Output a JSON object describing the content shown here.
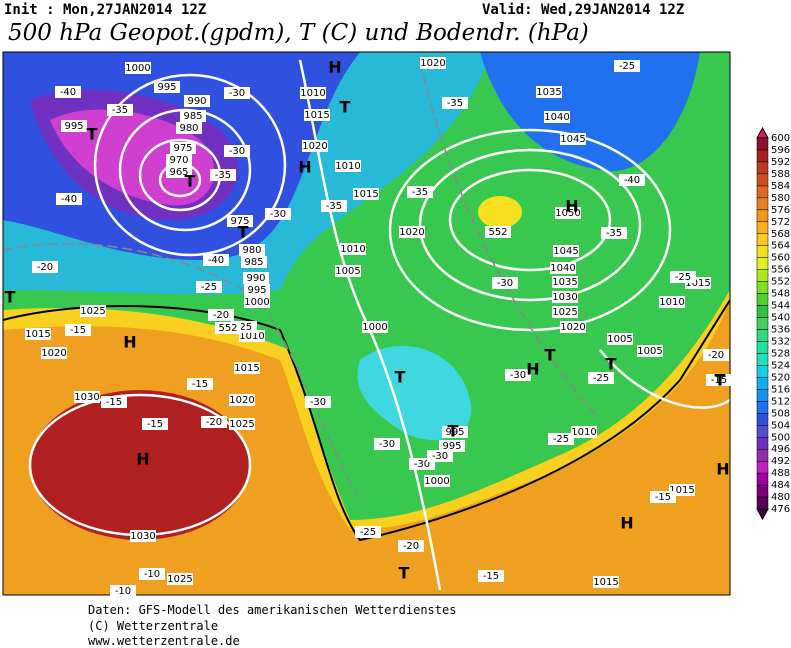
{
  "header": {
    "init": "Init : Mon,27JAN2014 12Z",
    "valid": "Valid: Wed,29JAN2014 12Z",
    "title": "500 hPa Geopot.(gpdm), T (C) und Bodendr. (hPa)"
  },
  "colorbar": {
    "labels": [
      600,
      596,
      592,
      588,
      584,
      580,
      576,
      572,
      568,
      564,
      560,
      556,
      552,
      548,
      544,
      540,
      536,
      532,
      528,
      524,
      520,
      516,
      512,
      508,
      504,
      500,
      496,
      492,
      488,
      484,
      480,
      476
    ]
  },
  "map_labels": [
    "1000",
    "995",
    "990",
    "985",
    "980",
    "975",
    "970",
    "965",
    "995",
    "1010",
    "1015",
    "1020",
    "1010",
    "1015",
    "1020",
    "1010",
    "1005",
    "1000",
    "975",
    "980",
    "985",
    "990",
    "995",
    "1000",
    "1010",
    "1015",
    "1020",
    "1025",
    "1025",
    "1015",
    "1020",
    "1030",
    "1030",
    "1025",
    "1020",
    "1035",
    "1040",
    "1045",
    "1050",
    "1045",
    "1040",
    "1035",
    "1030",
    "1025",
    "1020",
    "1010",
    "1015",
    "1005",
    "1005",
    "1010",
    "995",
    "995",
    "1000",
    "1015",
    "1015",
    "-30",
    "-35",
    "-35",
    "-30",
    "-30",
    "-35",
    "-35",
    "-35",
    "-25",
    "-40",
    "-35",
    "-30",
    "-25",
    "-40",
    "-40",
    "-20",
    "-15",
    "-40",
    "-25",
    "-20",
    "-25",
    "-15",
    "-15",
    "-15",
    "-20",
    "-30",
    "-30",
    "-25",
    "-20",
    "-15",
    "-30",
    "-30",
    "-30",
    "-25",
    "-25",
    "-20",
    "-15",
    "-15",
    "-10",
    "-10",
    "552",
    "552"
  ],
  "map_markers": [
    "H",
    "T",
    "T",
    "T",
    "T",
    "H",
    "H",
    "T",
    "H",
    "H",
    "T",
    "T",
    "H",
    "T",
    "T",
    "T",
    "H",
    "H",
    "T"
  ],
  "footer": [
    "Daten: GFS-Modell des amerikanischen Wetterdienstes",
    "(C) Wetterzentrale",
    "www.wetterzentrale.de"
  ]
}
